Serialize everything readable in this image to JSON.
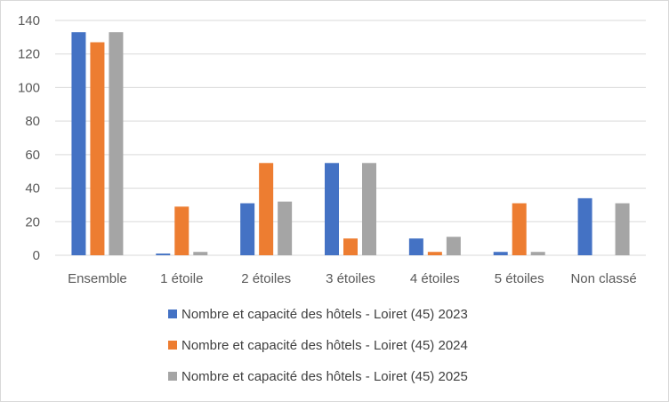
{
  "chart_data": {
    "type": "bar",
    "categories": [
      "Ensemble",
      "1 étoile",
      "2 étoiles",
      "3 étoiles",
      "4 étoiles",
      "5 étoiles",
      "Non classé"
    ],
    "series": [
      {
        "name": "Nombre et capacité des hôtels - Loiret (45) 2023",
        "color": "#4472c4",
        "values": [
          133,
          1,
          31,
          55,
          10,
          2,
          34
        ]
      },
      {
        "name": "Nombre et capacité des hôtels - Loiret (45) 2024",
        "color": "#ed7d31",
        "values": [
          127,
          29,
          55,
          10,
          2,
          31,
          0
        ]
      },
      {
        "name": "Nombre et capacité des hôtels - Loiret (45) 2025",
        "color": "#a5a5a5",
        "values": [
          133,
          2,
          32,
          55,
          11,
          2,
          31
        ]
      }
    ],
    "yticks": [
      "0",
      "20",
      "40",
      "60",
      "80",
      "100",
      "120",
      "140"
    ],
    "ylim": [
      0,
      140
    ],
    "grid": true,
    "legend_position": "bottom"
  }
}
